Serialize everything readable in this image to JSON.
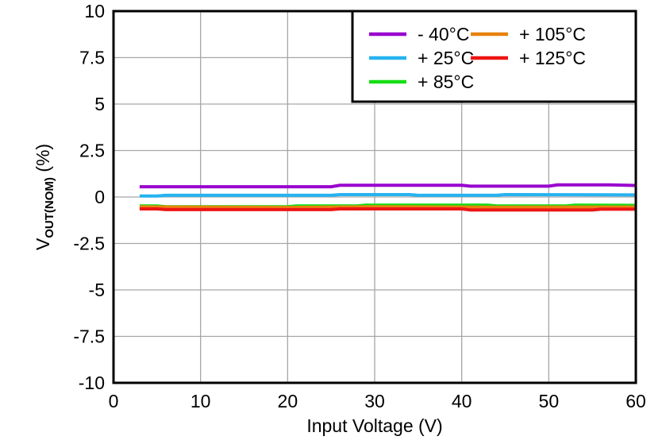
{
  "figure": {
    "background": "#ffffff",
    "axis_color": "#000000",
    "grid_color": "#a6a6a6",
    "text_color": "#000000"
  },
  "chart_data": {
    "type": "line",
    "title": "",
    "xlabel": "Input Voltage (V)",
    "ylabel": {
      "main": "V",
      "sub": "OUT(NOM)",
      "unit": " (%)"
    },
    "xlim": [
      0,
      60
    ],
    "ylim": [
      -10,
      10
    ],
    "x_ticks": [
      0,
      10,
      20,
      30,
      40,
      50,
      60
    ],
    "x_tick_labels": [
      "0",
      "10",
      "20",
      "30",
      "40",
      "50",
      "60"
    ],
    "y_ticks": [
      10,
      7.5,
      5,
      2.5,
      0,
      -2.5,
      -5,
      -7.5,
      -10
    ],
    "y_tick_labels": [
      "10",
      "7.5",
      "5",
      "2.5",
      "0",
      "-2.5",
      "-5",
      "-7.5",
      "-10"
    ],
    "grid": true,
    "legend_position": "top-right",
    "legend_columns": 2,
    "series": [
      {
        "name": "- 40°C",
        "slug": "minus-40c",
        "color": "#9902CE",
        "x": [
          3,
          25,
          26,
          40,
          41,
          50,
          51,
          57,
          60
        ],
        "y": [
          0.55,
          0.55,
          0.63,
          0.63,
          0.58,
          0.58,
          0.65,
          0.65,
          0.62
        ]
      },
      {
        "name": "+ 25°C",
        "slug": "plus-25c",
        "color": "#26B3F0",
        "x": [
          3,
          5,
          6,
          25,
          26,
          34,
          35,
          44,
          45,
          60
        ],
        "y": [
          0.05,
          0.05,
          0.09,
          0.09,
          0.13,
          0.13,
          0.09,
          0.09,
          0.13,
          0.11
        ]
      },
      {
        "name": "+ 85°C",
        "slug": "plus-85c",
        "color": "#15DD15",
        "x": [
          3,
          5,
          6,
          20,
          21,
          28,
          29,
          43,
          44,
          52,
          53,
          60
        ],
        "y": [
          -0.48,
          -0.48,
          -0.52,
          -0.52,
          -0.48,
          -0.48,
          -0.44,
          -0.44,
          -0.48,
          -0.48,
          -0.44,
          -0.45
        ]
      },
      {
        "name": "+ 105°C",
        "slug": "plus-105c",
        "color": "#E8820D",
        "x": [
          3,
          20,
          30,
          45,
          60
        ],
        "y": [
          -0.53,
          -0.56,
          -0.52,
          -0.55,
          -0.54
        ]
      },
      {
        "name": "+ 125°C",
        "slug": "plus-125c",
        "color": "#ED1515",
        "x": [
          3,
          5,
          6,
          25,
          26,
          40,
          41,
          55,
          56,
          60
        ],
        "y": [
          -0.64,
          -0.64,
          -0.68,
          -0.68,
          -0.64,
          -0.64,
          -0.7,
          -0.7,
          -0.66,
          -0.66
        ]
      }
    ]
  }
}
